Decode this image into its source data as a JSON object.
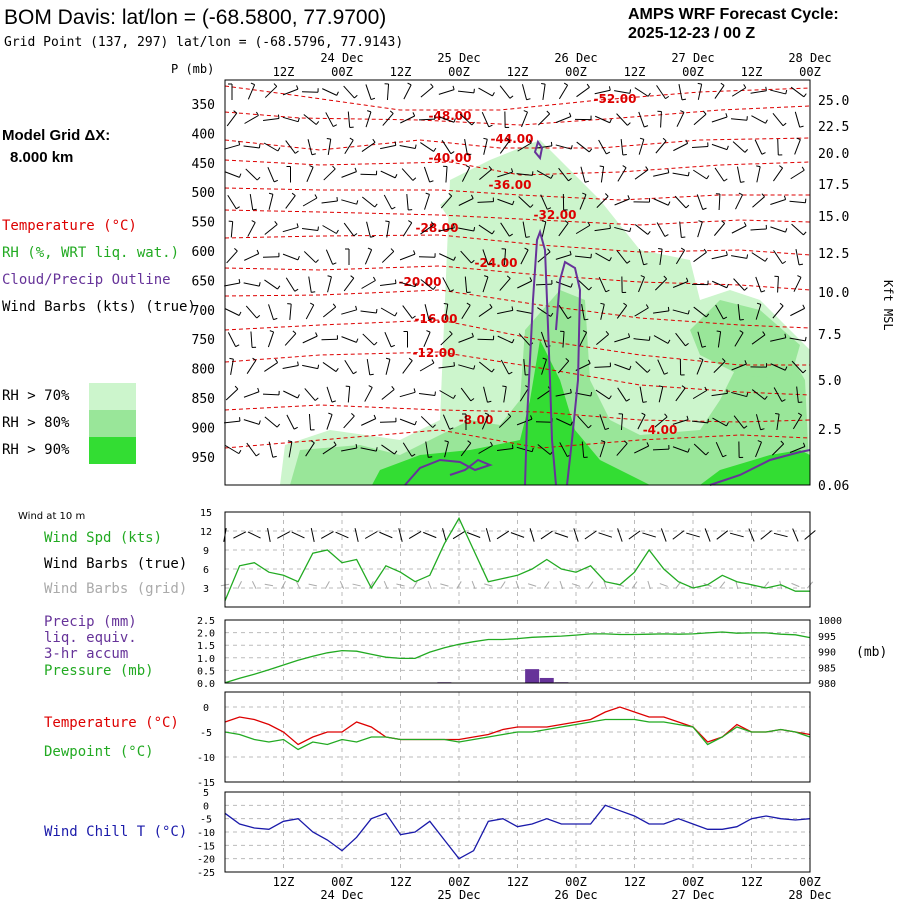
{
  "header": {
    "station_title": "BOM Davis:  lat/lon = (-68.5800, 77.9700)",
    "grid_point": "Grid Point (137, 297) lat/lon = (-68.5796, 77.9143)",
    "forecast_cycle_label": "AMPS WRF Forecast Cycle:",
    "forecast_cycle_value": "2025-12-23 / 00  Z"
  },
  "colors": {
    "temperature": "#dd0000",
    "rh_green": "#22aa22",
    "cloud": "#663399",
    "wind": "#000000",
    "wind_grid": "#aaaaaa",
    "wind_chill": "#1a1aaa",
    "rh70": "#ccf5cc",
    "rh80": "#99e699",
    "rh90": "#33dd33"
  },
  "time_axis": {
    "tick_labels": [
      "12Z",
      "00Z",
      "12Z",
      "00Z",
      "12Z",
      "00Z",
      "12Z",
      "00Z",
      "12Z",
      "00Z"
    ],
    "date_labels": [
      "24 Dec",
      "25 Dec",
      "26 Dec",
      "27 Dec",
      "28 Dec"
    ]
  },
  "chart_data": [
    {
      "type": "heatmap",
      "name": "sounding_cross_section",
      "ylabel_left": "P (mb)",
      "ylabel_right": "Kft MSL",
      "pressure_ticks": [
        "350",
        "400",
        "450",
        "500",
        "550",
        "600",
        "650",
        "700",
        "750",
        "800",
        "850",
        "900",
        "950"
      ],
      "height_ticks": [
        "25.0",
        "22.5",
        "20.0",
        "17.5",
        "15.0",
        "12.5",
        "10.0",
        "7.5",
        "5.0",
        "2.5",
        "0.06"
      ],
      "temperature_labels": [
        "-52.00",
        "-48.00",
        "-44.00",
        "-40.00",
        "-36.00",
        "-32.00",
        "-28.00",
        "-24.00",
        "-20.00",
        "-16.00",
        "-12.00",
        "-8.00",
        "-4.00"
      ],
      "model_grid_label": "Model Grid ΔX:",
      "model_grid_value": "8.000 km",
      "legend": {
        "temperature": "Temperature (°C)",
        "rh": "RH (%, WRT liq. wat.)",
        "cloud": "Cloud/Precip Outline",
        "wind": "Wind Barbs (kts) (true)",
        "rh70": "RH > 70%",
        "rh80": "RH > 80%",
        "rh90": "RH > 90%"
      }
    },
    {
      "type": "line",
      "name": "wind_10m",
      "title": "Wind at 10 m",
      "label_speed": "Wind Spd (kts)",
      "label_barbs_true": "Wind Barbs (true)",
      "label_barbs_grid": "Wind Barbs (grid)",
      "y_ticks": [
        "15",
        "12",
        "9",
        "6",
        "3"
      ],
      "ylim": [
        0,
        15
      ],
      "x_hours": [
        0,
        3,
        6,
        9,
        12,
        15,
        18,
        21,
        24,
        27,
        30,
        33,
        36,
        39,
        42,
        45,
        48,
        51,
        54,
        57,
        60,
        63,
        66,
        69,
        72,
        75,
        78,
        81,
        84,
        87,
        90,
        93,
        96,
        99,
        102,
        105,
        108,
        111,
        114,
        117,
        120
      ],
      "wind_speed": [
        1,
        6.5,
        7,
        5.5,
        5,
        4,
        8.5,
        9,
        7,
        7.5,
        3,
        6.5,
        5.5,
        4,
        5,
        10,
        14,
        9,
        4,
        4.5,
        5,
        6,
        7.5,
        6,
        5.5,
        6.5,
        4,
        3.5,
        5.5,
        9,
        6,
        4,
        3,
        3.5,
        5,
        4,
        3.5,
        3,
        3.5,
        2.5,
        2.5
      ]
    },
    {
      "type": "bar",
      "name": "precip_pressure",
      "label_precip": "Precip (mm)",
      "label_liq": "liq. equiv.",
      "label_accum": "3-hr accum",
      "label_pressure": "Pressure (mb)",
      "unit_right": "(mb)",
      "precip_ticks": [
        "2.5",
        "2.0",
        "1.5",
        "1.0",
        "0.5",
        "0.0"
      ],
      "pressure_ticks": [
        "1000",
        "995",
        "990",
        "985",
        "980"
      ],
      "precip_ylim": [
        0,
        2.5
      ],
      "pressure_ylim": [
        980,
        1000
      ],
      "precip_bars": [
        {
          "hour": 45,
          "value": 0.03
        },
        {
          "hour": 63,
          "value": 0.55
        },
        {
          "hour": 66,
          "value": 0.2
        },
        {
          "hour": 69,
          "value": 0.03
        }
      ],
      "pressure": [
        980.1,
        981.5,
        982.8,
        984.2,
        985.7,
        987.2,
        988.5,
        989.6,
        990.3,
        990.1,
        989.1,
        988.2,
        987.8,
        987.8,
        989.8,
        991.2,
        992.3,
        993.1,
        993.8,
        993.8,
        994.1,
        994.5,
        994.7,
        994.9,
        995.2,
        995.6,
        995.6,
        995.4,
        995.4,
        995.5,
        995.6,
        995.5,
        995.6,
        995.9,
        996.2,
        995.8,
        995.9,
        995.9,
        995.5,
        995.3,
        994.4
      ]
    },
    {
      "type": "line",
      "name": "temp_dewpoint",
      "label_temperature": "Temperature (°C)",
      "label_dewpoint": "Dewpoint (°C)",
      "y_ticks": [
        "0",
        "-5",
        "-10",
        "-15"
      ],
      "ylim": [
        -15,
        3
      ],
      "temperature": [
        -3,
        -2,
        -2.5,
        -3.5,
        -5,
        -7.5,
        -6,
        -5,
        -5,
        -3,
        -4,
        -6,
        -6.5,
        -6.5,
        -6.5,
        -6.5,
        -6.5,
        -6,
        -5.5,
        -4.5,
        -4,
        -4,
        -4,
        -3.5,
        -3,
        -2.5,
        -1,
        0,
        -1,
        -2,
        -2,
        -3,
        -4,
        -7,
        -6,
        -3.5,
        -5,
        -5,
        -4.5,
        -5,
        -5.5
      ],
      "dewpoint": [
        -5,
        -5.5,
        -6.5,
        -7,
        -6.5,
        -8.5,
        -7,
        -7.5,
        -6.5,
        -7,
        -6,
        -6,
        -6.5,
        -6.5,
        -6.5,
        -6.5,
        -7,
        -6.5,
        -6,
        -5.5,
        -5,
        -5,
        -4.5,
        -4,
        -3.5,
        -3,
        -2.5,
        -2.5,
        -2.5,
        -3,
        -3,
        -3.5,
        -4,
        -7.5,
        -6,
        -4,
        -5,
        -5,
        -4.5,
        -5,
        -6
      ]
    },
    {
      "type": "line",
      "name": "wind_chill",
      "label": "Wind Chill T (°C)",
      "y_ticks": [
        "5",
        "0",
        "-5",
        "-10",
        "-15",
        "-20",
        "-25"
      ],
      "ylim": [
        -25,
        5
      ],
      "wind_chill": [
        -3,
        -7,
        -8.5,
        -9,
        -6,
        -5,
        -10,
        -13,
        -17,
        -12,
        -5,
        -3,
        -11,
        -10,
        -6,
        -13,
        -20,
        -17,
        -6,
        -5,
        -8,
        -7,
        -5,
        -7,
        -7,
        -7,
        0,
        -2,
        -4,
        -7,
        -7,
        -5,
        -7,
        -9,
        -9,
        -8,
        -5,
        -4,
        -5,
        -5.5,
        -5
      ]
    }
  ]
}
